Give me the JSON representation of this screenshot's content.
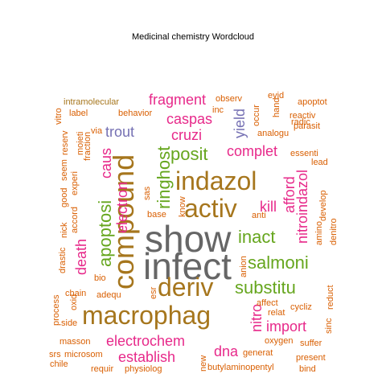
{
  "title": "Medicinal chemistry  Wordcloud",
  "palette": {
    "gray": "#666666",
    "magenta": "#e7298a",
    "green": "#66a61e",
    "brown": "#a6761d",
    "orange": "#d95f02",
    "purple": "#7570b3",
    "gold": "#e6ab02"
  },
  "words": [
    {
      "text": "show",
      "weight": 1.0,
      "color": "gray"
    },
    {
      "text": "infect",
      "weight": 1.0,
      "color": "gray"
    },
    {
      "text": "compound",
      "weight": 0.9,
      "color": "brown"
    },
    {
      "text": "macrophag",
      "weight": 0.85,
      "color": "brown"
    },
    {
      "text": "indazol",
      "weight": 0.8,
      "color": "brown"
    },
    {
      "text": "activ",
      "weight": 0.8,
      "color": "brown"
    },
    {
      "text": "deriv",
      "weight": 0.75,
      "color": "brown"
    },
    {
      "text": "substitu",
      "weight": 0.55,
      "color": "green"
    },
    {
      "text": "salmoni",
      "weight": 0.55,
      "color": "green"
    },
    {
      "text": "inact",
      "weight": 0.55,
      "color": "green"
    },
    {
      "text": "ringhost",
      "weight": 0.55,
      "color": "green"
    },
    {
      "text": "posit",
      "weight": 0.5,
      "color": "green"
    },
    {
      "text": "apoptosi",
      "weight": 0.5,
      "color": "green"
    },
    {
      "text": "nitroindazol",
      "weight": 0.45,
      "color": "magenta"
    },
    {
      "text": "fragment",
      "weight": 0.42,
      "color": "magenta"
    },
    {
      "text": "caspas",
      "weight": 0.42,
      "color": "magenta"
    },
    {
      "text": "electrochem",
      "weight": 0.42,
      "color": "magenta"
    },
    {
      "text": "establish",
      "weight": 0.4,
      "color": "magenta"
    },
    {
      "text": "electron",
      "weight": 0.4,
      "color": "magenta"
    },
    {
      "text": "import",
      "weight": 0.4,
      "color": "magenta"
    },
    {
      "text": "nitro",
      "weight": 0.38,
      "color": "magenta"
    },
    {
      "text": "dna",
      "weight": 0.38,
      "color": "magenta"
    },
    {
      "text": "complet",
      "weight": 0.38,
      "color": "magenta"
    },
    {
      "text": "afford",
      "weight": 0.38,
      "color": "magenta"
    },
    {
      "text": "death",
      "weight": 0.38,
      "color": "magenta"
    },
    {
      "text": "kill",
      "weight": 0.38,
      "color": "magenta"
    },
    {
      "text": "caus",
      "weight": 0.36,
      "color": "magenta"
    },
    {
      "text": "cruzi",
      "weight": 0.36,
      "color": "magenta"
    },
    {
      "text": "trout",
      "weight": 0.36,
      "color": "purple"
    },
    {
      "text": "yield",
      "weight": 0.36,
      "color": "purple"
    },
    {
      "text": "intramolecular",
      "weight": 0.2,
      "color": "brown"
    },
    {
      "text": "observ",
      "weight": 0.2,
      "color": "orange"
    },
    {
      "text": "evid",
      "weight": 0.2,
      "color": "orange"
    },
    {
      "text": "apoptot",
      "weight": 0.2,
      "color": "orange"
    },
    {
      "text": "radic",
      "weight": 0.2,
      "color": "orange"
    },
    {
      "text": "reactiv",
      "weight": 0.2,
      "color": "orange"
    },
    {
      "text": "parasit",
      "weight": 0.2,
      "color": "orange"
    },
    {
      "text": "analogu",
      "weight": 0.2,
      "color": "orange"
    },
    {
      "text": "essenti",
      "weight": 0.2,
      "color": "orange"
    },
    {
      "text": "lead",
      "weight": 0.2,
      "color": "orange"
    },
    {
      "text": "develop",
      "weight": 0.2,
      "color": "orange"
    },
    {
      "text": "denitro",
      "weight": 0.2,
      "color": "orange"
    },
    {
      "text": "amino",
      "weight": 0.2,
      "color": "orange"
    },
    {
      "text": "anti",
      "weight": 0.2,
      "color": "orange"
    },
    {
      "text": "anion",
      "weight": 0.2,
      "color": "orange"
    },
    {
      "text": "affect",
      "weight": 0.2,
      "color": "orange"
    },
    {
      "text": "relat",
      "weight": 0.2,
      "color": "orange"
    },
    {
      "text": "cycliz",
      "weight": 0.2,
      "color": "orange"
    },
    {
      "text": "reduct",
      "weight": 0.2,
      "color": "orange"
    },
    {
      "text": "sinc",
      "weight": 0.2,
      "color": "orange"
    },
    {
      "text": "oxygen",
      "weight": 0.2,
      "color": "orange"
    },
    {
      "text": "suffer",
      "weight": 0.2,
      "color": "orange"
    },
    {
      "text": "present",
      "weight": 0.2,
      "color": "orange"
    },
    {
      "text": "bind",
      "weight": 0.2,
      "color": "orange"
    },
    {
      "text": "butylaminopentyl",
      "weight": 0.2,
      "color": "orange"
    },
    {
      "text": "generat",
      "weight": 0.2,
      "color": "orange"
    },
    {
      "text": "new",
      "weight": 0.2,
      "color": "orange"
    },
    {
      "text": "requir",
      "weight": 0.2,
      "color": "orange"
    },
    {
      "text": "physiolog",
      "weight": 0.2,
      "color": "orange"
    },
    {
      "text": "chile",
      "weight": 0.2,
      "color": "orange"
    },
    {
      "text": "srs",
      "weight": 0.2,
      "color": "orange"
    },
    {
      "text": "microsom",
      "weight": 0.2,
      "color": "orange"
    },
    {
      "text": "masson",
      "weight": 0.2,
      "color": "orange"
    },
    {
      "text": "side",
      "weight": 0.2,
      "color": "orange"
    },
    {
      "text": "process",
      "weight": 0.2,
      "color": "orange"
    },
    {
      "text": "oxid",
      "weight": 0.2,
      "color": "orange"
    },
    {
      "text": "chain",
      "weight": 0.2,
      "color": "orange"
    },
    {
      "text": "adequ",
      "weight": 0.2,
      "color": "orange"
    },
    {
      "text": "bio",
      "weight": 0.2,
      "color": "orange"
    },
    {
      "text": "esr",
      "weight": 0.2,
      "color": "orange"
    },
    {
      "text": "drastic",
      "weight": 0.2,
      "color": "orange"
    },
    {
      "text": "nick",
      "weight": 0.2,
      "color": "orange"
    },
    {
      "text": "good",
      "weight": 0.2,
      "color": "orange"
    },
    {
      "text": "seem",
      "weight": 0.2,
      "color": "orange"
    },
    {
      "text": "accord",
      "weight": 0.2,
      "color": "orange"
    },
    {
      "text": "experi",
      "weight": 0.2,
      "color": "orange"
    },
    {
      "text": "reserv",
      "weight": 0.2,
      "color": "orange"
    },
    {
      "text": "moieti",
      "weight": 0.2,
      "color": "orange"
    },
    {
      "text": "fraction",
      "weight": 0.2,
      "color": "orange"
    },
    {
      "text": "vitro",
      "weight": 0.2,
      "color": "orange"
    },
    {
      "text": "label",
      "weight": 0.2,
      "color": "orange"
    },
    {
      "text": "behavior",
      "weight": 0.2,
      "color": "orange"
    },
    {
      "text": "via",
      "weight": 0.2,
      "color": "orange"
    },
    {
      "text": "inc",
      "weight": 0.2,
      "color": "orange"
    },
    {
      "text": "occur",
      "weight": 0.2,
      "color": "orange"
    },
    {
      "text": "hand",
      "weight": 0.2,
      "color": "orange"
    },
    {
      "text": "sas",
      "weight": 0.2,
      "color": "orange"
    },
    {
      "text": "base",
      "weight": 0.2,
      "color": "orange"
    },
    {
      "text": "know",
      "weight": 0.2,
      "color": "orange"
    }
  ]
}
